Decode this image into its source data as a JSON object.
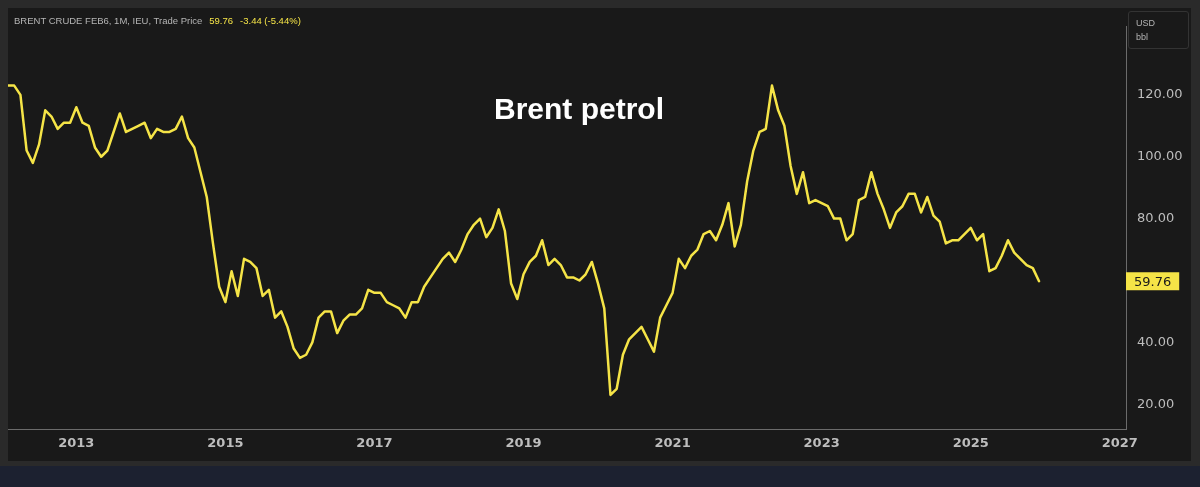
{
  "chart_data": {
    "type": "line",
    "title": "Brent petrol",
    "subtitle": "BRENT CRUDE FEB6, 1M, IEU, Trade Price",
    "ylabel": "USD bbl",
    "annotations": [
      "59.76",
      "-3.44 (-5.44%)",
      "59.76"
    ],
    "x": [
      "2012-02",
      "2012-03",
      "2012-04",
      "2012-05",
      "2012-06",
      "2012-07",
      "2012-08",
      "2012-09",
      "2012-10",
      "2012-11",
      "2012-12",
      "2013-01",
      "2013-02",
      "2013-03",
      "2013-04",
      "2013-05",
      "2013-06",
      "2013-07",
      "2013-08",
      "2013-09",
      "2013-10",
      "2013-11",
      "2013-12",
      "2014-01",
      "2014-02",
      "2014-03",
      "2014-04",
      "2014-05",
      "2014-06",
      "2014-07",
      "2014-08",
      "2014-09",
      "2014-10",
      "2014-11",
      "2014-12",
      "2015-01",
      "2015-02",
      "2015-03",
      "2015-04",
      "2015-05",
      "2015-06",
      "2015-07",
      "2015-08",
      "2015-09",
      "2015-10",
      "2015-11",
      "2015-12",
      "2016-01",
      "2016-02",
      "2016-03",
      "2016-04",
      "2016-05",
      "2016-06",
      "2016-07",
      "2016-08",
      "2016-09",
      "2016-10",
      "2016-11",
      "2016-12",
      "2017-01",
      "2017-02",
      "2017-03",
      "2017-04",
      "2017-05",
      "2017-06",
      "2017-07",
      "2017-08",
      "2017-09",
      "2017-10",
      "2017-11",
      "2017-12",
      "2018-01",
      "2018-02",
      "2018-03",
      "2018-04",
      "2018-05",
      "2018-06",
      "2018-07",
      "2018-08",
      "2018-09",
      "2018-10",
      "2018-11",
      "2018-12",
      "2019-01",
      "2019-02",
      "2019-03",
      "2019-04",
      "2019-05",
      "2019-06",
      "2019-07",
      "2019-08",
      "2019-09",
      "2019-10",
      "2019-11",
      "2019-12",
      "2020-01",
      "2020-02",
      "2020-03",
      "2020-04",
      "2020-05",
      "2020-06",
      "2020-07",
      "2020-08",
      "2020-09",
      "2020-10",
      "2020-11",
      "2020-12",
      "2021-01",
      "2021-02",
      "2021-03",
      "2021-04",
      "2021-05",
      "2021-06",
      "2021-07",
      "2021-08",
      "2021-09",
      "2021-10",
      "2021-11",
      "2021-12",
      "2022-01",
      "2022-02",
      "2022-03",
      "2022-04",
      "2022-05",
      "2022-06",
      "2022-07",
      "2022-08",
      "2022-09",
      "2022-10",
      "2022-11",
      "2022-12",
      "2023-01",
      "2023-02",
      "2023-03",
      "2023-04",
      "2023-05",
      "2023-06",
      "2023-07",
      "2023-08",
      "2023-09",
      "2023-10",
      "2023-11",
      "2023-12",
      "2024-01",
      "2024-02",
      "2024-03",
      "2024-04",
      "2024-05",
      "2024-06",
      "2024-07",
      "2024-08",
      "2024-09",
      "2024-10",
      "2024-11",
      "2024-12",
      "2025-01",
      "2025-02",
      "2025-03",
      "2025-04",
      "2025-05",
      "2025-06",
      "2025-07",
      "2025-08",
      "2025-09",
      "2025-10",
      "2025-11",
      "2025-12"
    ],
    "values": [
      123,
      123,
      120,
      102,
      98,
      104,
      115,
      113,
      109,
      111,
      111,
      116,
      111,
      110,
      103,
      100,
      102,
      108,
      114,
      108,
      109,
      110,
      111,
      106,
      109,
      108,
      108,
      109,
      113,
      106,
      103,
      95,
      87,
      72,
      58,
      53,
      63,
      55,
      67,
      66,
      64,
      55,
      57,
      48,
      50,
      45,
      38,
      35,
      36,
      40,
      48,
      50,
      50,
      43,
      47,
      49,
      49,
      51,
      57,
      56,
      56,
      53,
      52,
      51,
      48,
      53,
      53,
      58,
      61,
      64,
      67,
      69,
      66,
      70,
      75,
      78,
      80,
      74,
      77,
      83,
      76,
      59,
      54,
      62,
      66,
      68,
      73,
      65,
      67,
      65,
      61,
      61,
      60,
      62,
      66,
      59,
      51,
      23,
      25,
      36,
      41,
      43,
      45,
      41,
      37,
      48,
      52,
      56,
      67,
      64,
      68,
      70,
      75,
      76,
      73,
      78,
      85,
      71,
      78,
      92,
      102,
      108,
      109,
      123,
      115,
      110,
      97,
      88,
      95,
      85,
      86,
      85,
      84,
      80,
      80,
      73,
      75,
      86,
      87,
      95,
      88,
      83,
      77,
      82,
      84,
      88,
      88,
      82,
      87,
      81,
      79,
      72,
      73,
      73,
      75,
      77,
      73,
      75,
      63,
      64,
      68,
      73,
      69,
      67,
      65,
      64,
      59.76
    ],
    "color": "#f5e447",
    "xlim": [
      "2012-02",
      "2027-02"
    ],
    "xticks": [
      "2013",
      "2015",
      "2017",
      "2019",
      "2021",
      "2023",
      "2025",
      "2027"
    ],
    "ylim": [
      12,
      142
    ],
    "yticks": [
      {
        "value": 20,
        "label": "20.00"
      },
      {
        "value": 40,
        "label": "40.00"
      },
      {
        "value": 80,
        "label": "80.00"
      },
      {
        "value": 100,
        "label": "100.00"
      },
      {
        "value": 120,
        "label": "120.00"
      }
    ]
  }
}
